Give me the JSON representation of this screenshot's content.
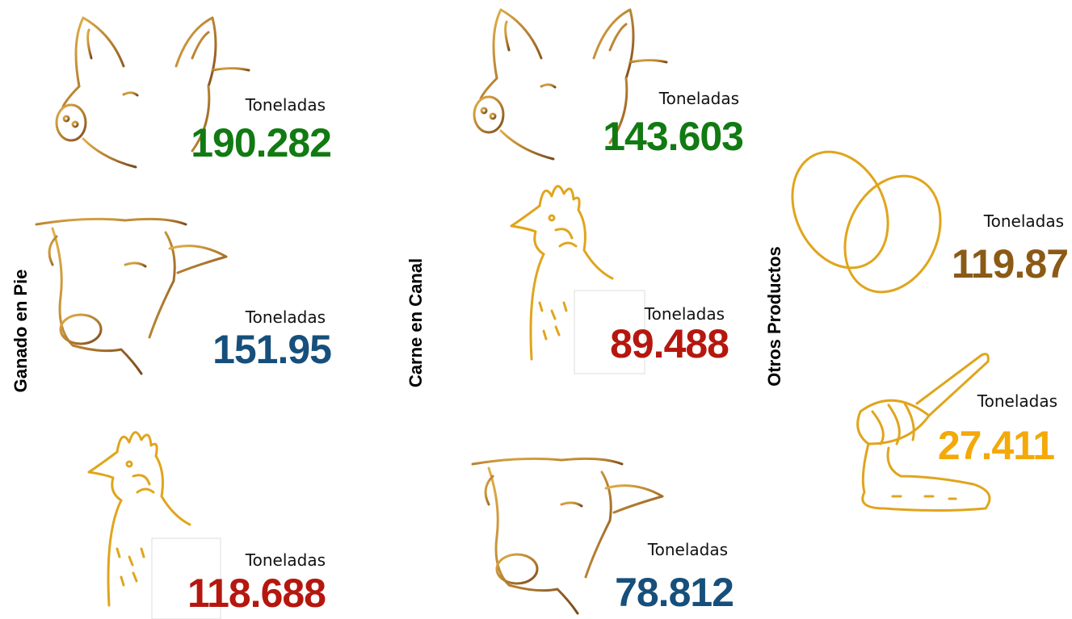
{
  "groups": [
    {
      "title": "Ganado en Pie",
      "items": [
        {
          "unit": "Toneladas",
          "value": "190.282"
        },
        {
          "unit": "Toneladas",
          "value": "151.95"
        },
        {
          "unit": "Toneladas",
          "value": "118.688"
        }
      ]
    },
    {
      "title": "Carne en Canal",
      "items": [
        {
          "unit": "Toneladas",
          "value": "143.603"
        },
        {
          "unit": "Toneladas",
          "value": "89.488"
        },
        {
          "unit": "Toneladas",
          "value": "78.812"
        }
      ]
    },
    {
      "title": "Otros Productos",
      "items": [
        {
          "unit": "Toneladas",
          "value": "119.87"
        },
        {
          "unit": "Toneladas",
          "value": "27.411"
        }
      ]
    }
  ]
}
